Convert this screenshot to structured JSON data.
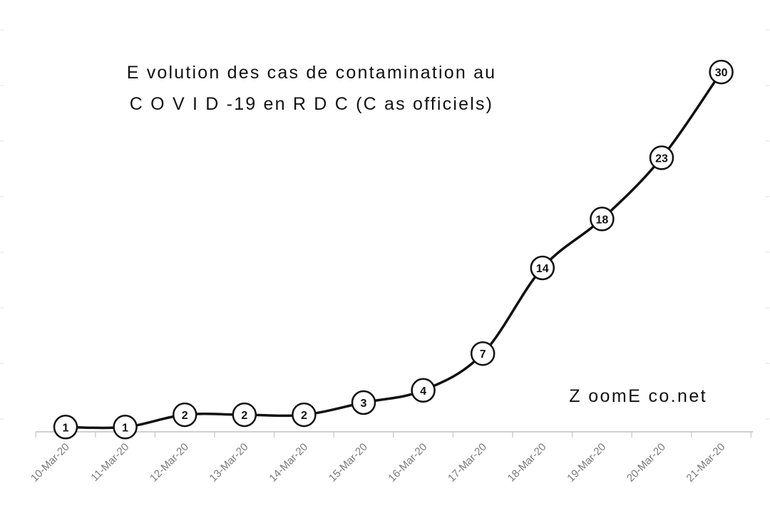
{
  "chart_data": {
    "type": "line",
    "title_lines": [
      "E volution  des cas de contamination  au",
      "C O V I D  -19  en  R D  C  (C as officiels)"
    ],
    "xlabel": "",
    "ylabel": "",
    "categories": [
      "10-Mar-20",
      "11-Mar-20",
      "12-Mar-20",
      "13-Mar-20",
      "14-Mar-20",
      "15-Mar-20",
      "16-Mar-20",
      "17-Mar-20",
      "18-Mar-20",
      "19-Mar-20",
      "20-Mar-20",
      "21-Mar-20"
    ],
    "series": [
      {
        "values": [
          1,
          1,
          2,
          2,
          2,
          3,
          4,
          7,
          14,
          18,
          23,
          30
        ],
        "color": "#111111"
      }
    ],
    "data_labels": [
      "1",
      "1",
      "2",
      "2",
      "2",
      "3",
      "4",
      "7",
      "14",
      "18",
      "23",
      "30"
    ],
    "ylim": [
      0,
      32
    ],
    "y_axis_visible": false,
    "grid": false,
    "legend": "none",
    "watermark": "Z oomE co.net"
  }
}
